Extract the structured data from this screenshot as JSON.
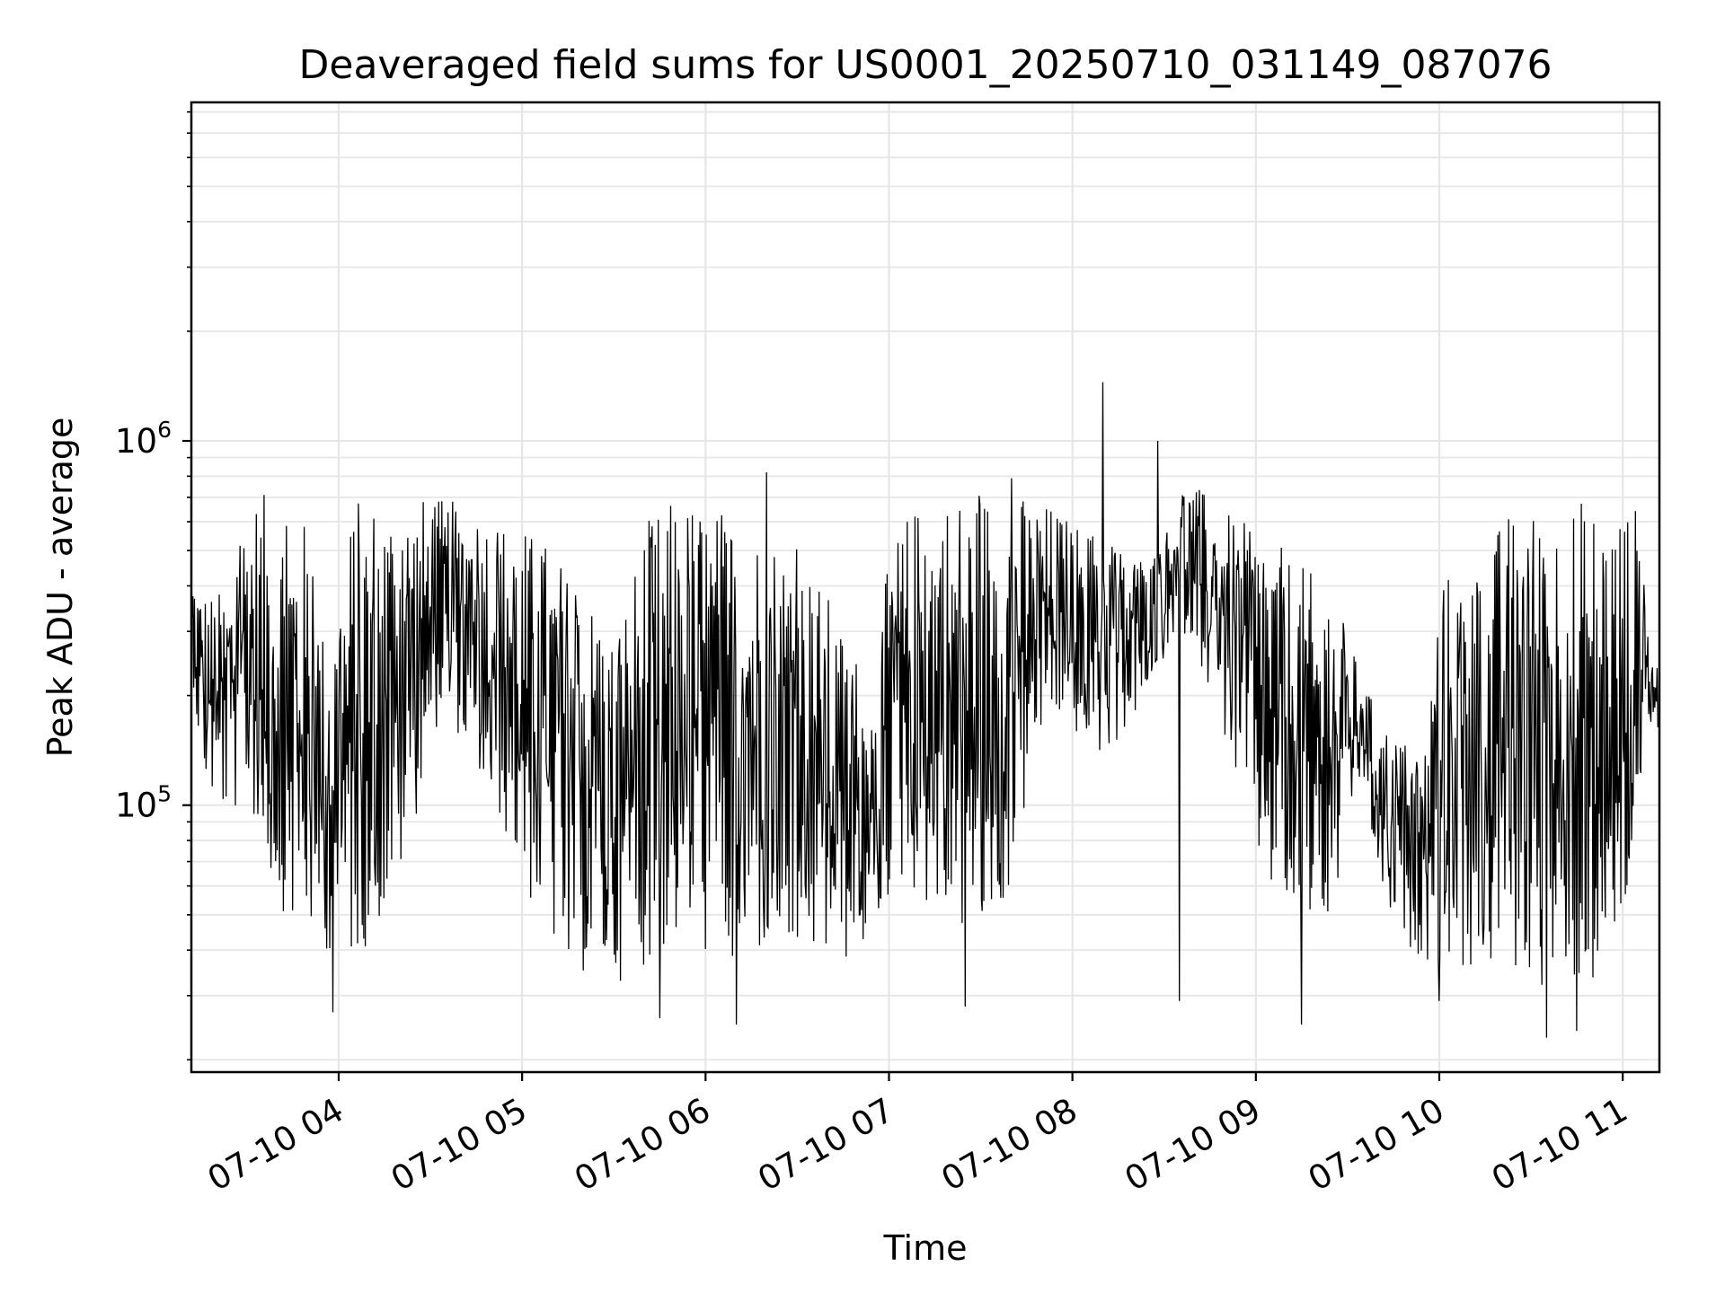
{
  "chart_data": {
    "type": "line",
    "title": "Deaveraged field sums for US0001_20250710_031149_087076",
    "xlabel": "Time",
    "ylabel": "Peak ADU - average",
    "yscale": "log",
    "xlim": [
      "2025-07-10T03:11:49",
      "2025-07-10T11:12:00"
    ],
    "ylim": [
      18500,
      8500000
    ],
    "grid": true,
    "x_ticks": [
      "07-10 04",
      "07-10 05",
      "07-10 06",
      "07-10 07",
      "07-10 08",
      "07-10 09",
      "07-10 10",
      "07-10 11"
    ],
    "y_ticks": [
      {
        "base": "10",
        "exp": "5",
        "value": 100000
      },
      {
        "base": "10",
        "exp": "6",
        "value": 1000000
      }
    ],
    "series": [
      {
        "color": "#000000",
        "x": [
          "2025-07-10T03:11:49",
          "2025-07-10T03:15",
          "2025-07-10T03:20",
          "2025-07-10T03:25",
          "2025-07-10T03:30",
          "2025-07-10T03:35",
          "2025-07-10T03:40",
          "2025-07-10T03:45",
          "2025-07-10T03:50",
          "2025-07-10T03:55",
          "2025-07-10T04:00",
          "2025-07-10T04:05",
          "2025-07-10T04:10",
          "2025-07-10T04:15",
          "2025-07-10T04:20",
          "2025-07-10T04:25",
          "2025-07-10T04:30",
          "2025-07-10T04:35",
          "2025-07-10T04:40",
          "2025-07-10T04:45",
          "2025-07-10T04:50",
          "2025-07-10T04:55",
          "2025-07-10T05:00",
          "2025-07-10T05:05",
          "2025-07-10T05:10",
          "2025-07-10T05:15",
          "2025-07-10T05:20",
          "2025-07-10T05:25",
          "2025-07-10T05:30",
          "2025-07-10T05:35",
          "2025-07-10T05:40",
          "2025-07-10T05:45",
          "2025-07-10T05:50",
          "2025-07-10T05:55",
          "2025-07-10T06:00",
          "2025-07-10T06:05",
          "2025-07-10T06:10",
          "2025-07-10T06:15",
          "2025-07-10T06:20",
          "2025-07-10T06:25",
          "2025-07-10T06:30",
          "2025-07-10T06:35",
          "2025-07-10T06:40",
          "2025-07-10T06:45",
          "2025-07-10T06:50",
          "2025-07-10T06:55",
          "2025-07-10T07:00",
          "2025-07-10T07:05",
          "2025-07-10T07:10",
          "2025-07-10T07:15",
          "2025-07-10T07:20",
          "2025-07-10T07:25",
          "2025-07-10T07:30",
          "2025-07-10T07:35",
          "2025-07-10T07:40",
          "2025-07-10T07:45",
          "2025-07-10T07:50",
          "2025-07-10T07:55",
          "2025-07-10T08:00",
          "2025-07-10T08:05",
          "2025-07-10T08:10",
          "2025-07-10T08:15",
          "2025-07-10T08:20",
          "2025-07-10T08:25",
          "2025-07-10T08:30",
          "2025-07-10T08:35",
          "2025-07-10T08:40",
          "2025-07-10T08:45",
          "2025-07-10T08:50",
          "2025-07-10T08:55",
          "2025-07-10T09:00",
          "2025-07-10T09:05",
          "2025-07-10T09:10",
          "2025-07-10T09:15",
          "2025-07-10T09:20",
          "2025-07-10T09:25",
          "2025-07-10T09:30",
          "2025-07-10T09:35",
          "2025-07-10T09:40",
          "2025-07-10T09:45",
          "2025-07-10T09:50",
          "2025-07-10T09:55",
          "2025-07-10T10:00",
          "2025-07-10T10:05",
          "2025-07-10T10:10",
          "2025-07-10T10:15",
          "2025-07-10T10:20",
          "2025-07-10T10:25",
          "2025-07-10T10:30",
          "2025-07-10T10:35",
          "2025-07-10T10:40",
          "2025-07-10T10:45",
          "2025-07-10T10:50",
          "2025-07-10T10:55",
          "2025-07-10T11:00",
          "2025-07-10T11:05",
          "2025-07-10T11:10"
        ],
        "low": [
          250000,
          120000,
          95000,
          90000,
          110000,
          70000,
          55000,
          45000,
          42000,
          40000,
          38000,
          36000,
          42000,
          48000,
          60000,
          90000,
          150000,
          180000,
          150000,
          120000,
          100000,
          80000,
          60000,
          48000,
          40000,
          36000,
          34000,
          33000,
          32000,
          34000,
          36000,
          38000,
          40000,
          40000,
          38000,
          36000,
          36000,
          36000,
          38000,
          38000,
          36000,
          36000,
          36000,
          36000,
          38000,
          42000,
          55000,
          60000,
          55000,
          50000,
          48000,
          42000,
          38000,
          45000,
          60000,
          100000,
          150000,
          170000,
          160000,
          140000,
          130000,
          150000,
          170000,
          200000,
          250000,
          300000,
          280000,
          200000,
          150000,
          100000,
          70000,
          55000,
          48000,
          46000,
          45000,
          48000,
          80000,
          120000,
          60000,
          45000,
          40000,
          38000,
          36000,
          35000,
          34000,
          34000,
          34000,
          33000,
          32000,
          31000,
          31000,
          31000,
          30000,
          30000,
          38000,
          100000,
          150000
        ],
        "high": [
          450000,
          400000,
          380000,
          420000,
          700000,
          720000,
          680000,
          640000,
          600000,
          300000,
          380000,
          700000,
          710000,
          720000,
          720000,
          700000,
          700000,
          690000,
          680000,
          680000,
          650000,
          600000,
          580000,
          560000,
          520000,
          440000,
          400000,
          360000,
          300000,
          400000,
          600000,
          650000,
          700000,
          700000,
          680000,
          660000,
          640000,
          600000,
          580000,
          560000,
          520000,
          440000,
          380000,
          300000,
          260000,
          200000,
          500000,
          620000,
          680000,
          700000,
          720000,
          740000,
          760000,
          760000,
          740000,
          700000,
          680000,
          650000,
          600000,
          580000,
          560000,
          520000,
          500000,
          480000,
          540000,
          780000,
          760000,
          700000,
          640000,
          600000,
          580000,
          540000,
          500000,
          460000,
          420000,
          380000,
          300000,
          220000,
          180000,
          160000,
          150000,
          140000,
          420000,
          450000,
          440000,
          420000,
          620000,
          660000,
          660000,
          680000,
          690000,
          700000,
          700000,
          690000,
          680000,
          660000,
          250000
        ],
        "spikes": [
          {
            "x": "2025-07-10T08:10",
            "y": 1450000
          },
          {
            "x": "2025-07-10T08:28",
            "y": 1000000
          },
          {
            "x": "2025-07-10T06:20",
            "y": 820000
          },
          {
            "x": "2025-07-10T07:40",
            "y": 790000
          },
          {
            "x": "2025-07-10T06:10",
            "y": 25000
          },
          {
            "x": "2025-07-10T07:25",
            "y": 28000
          },
          {
            "x": "2025-07-10T09:15",
            "y": 25000
          },
          {
            "x": "2025-07-10T10:35",
            "y": 23000
          },
          {
            "x": "2025-07-10T10:45",
            "y": 24000
          },
          {
            "x": "2025-07-10T03:58",
            "y": 27000
          },
          {
            "x": "2025-07-10T05:45",
            "y": 26000
          },
          {
            "x": "2025-07-10T10:00",
            "y": 29000
          },
          {
            "x": "2025-07-10T08:35",
            "y": 29000
          }
        ]
      }
    ]
  }
}
